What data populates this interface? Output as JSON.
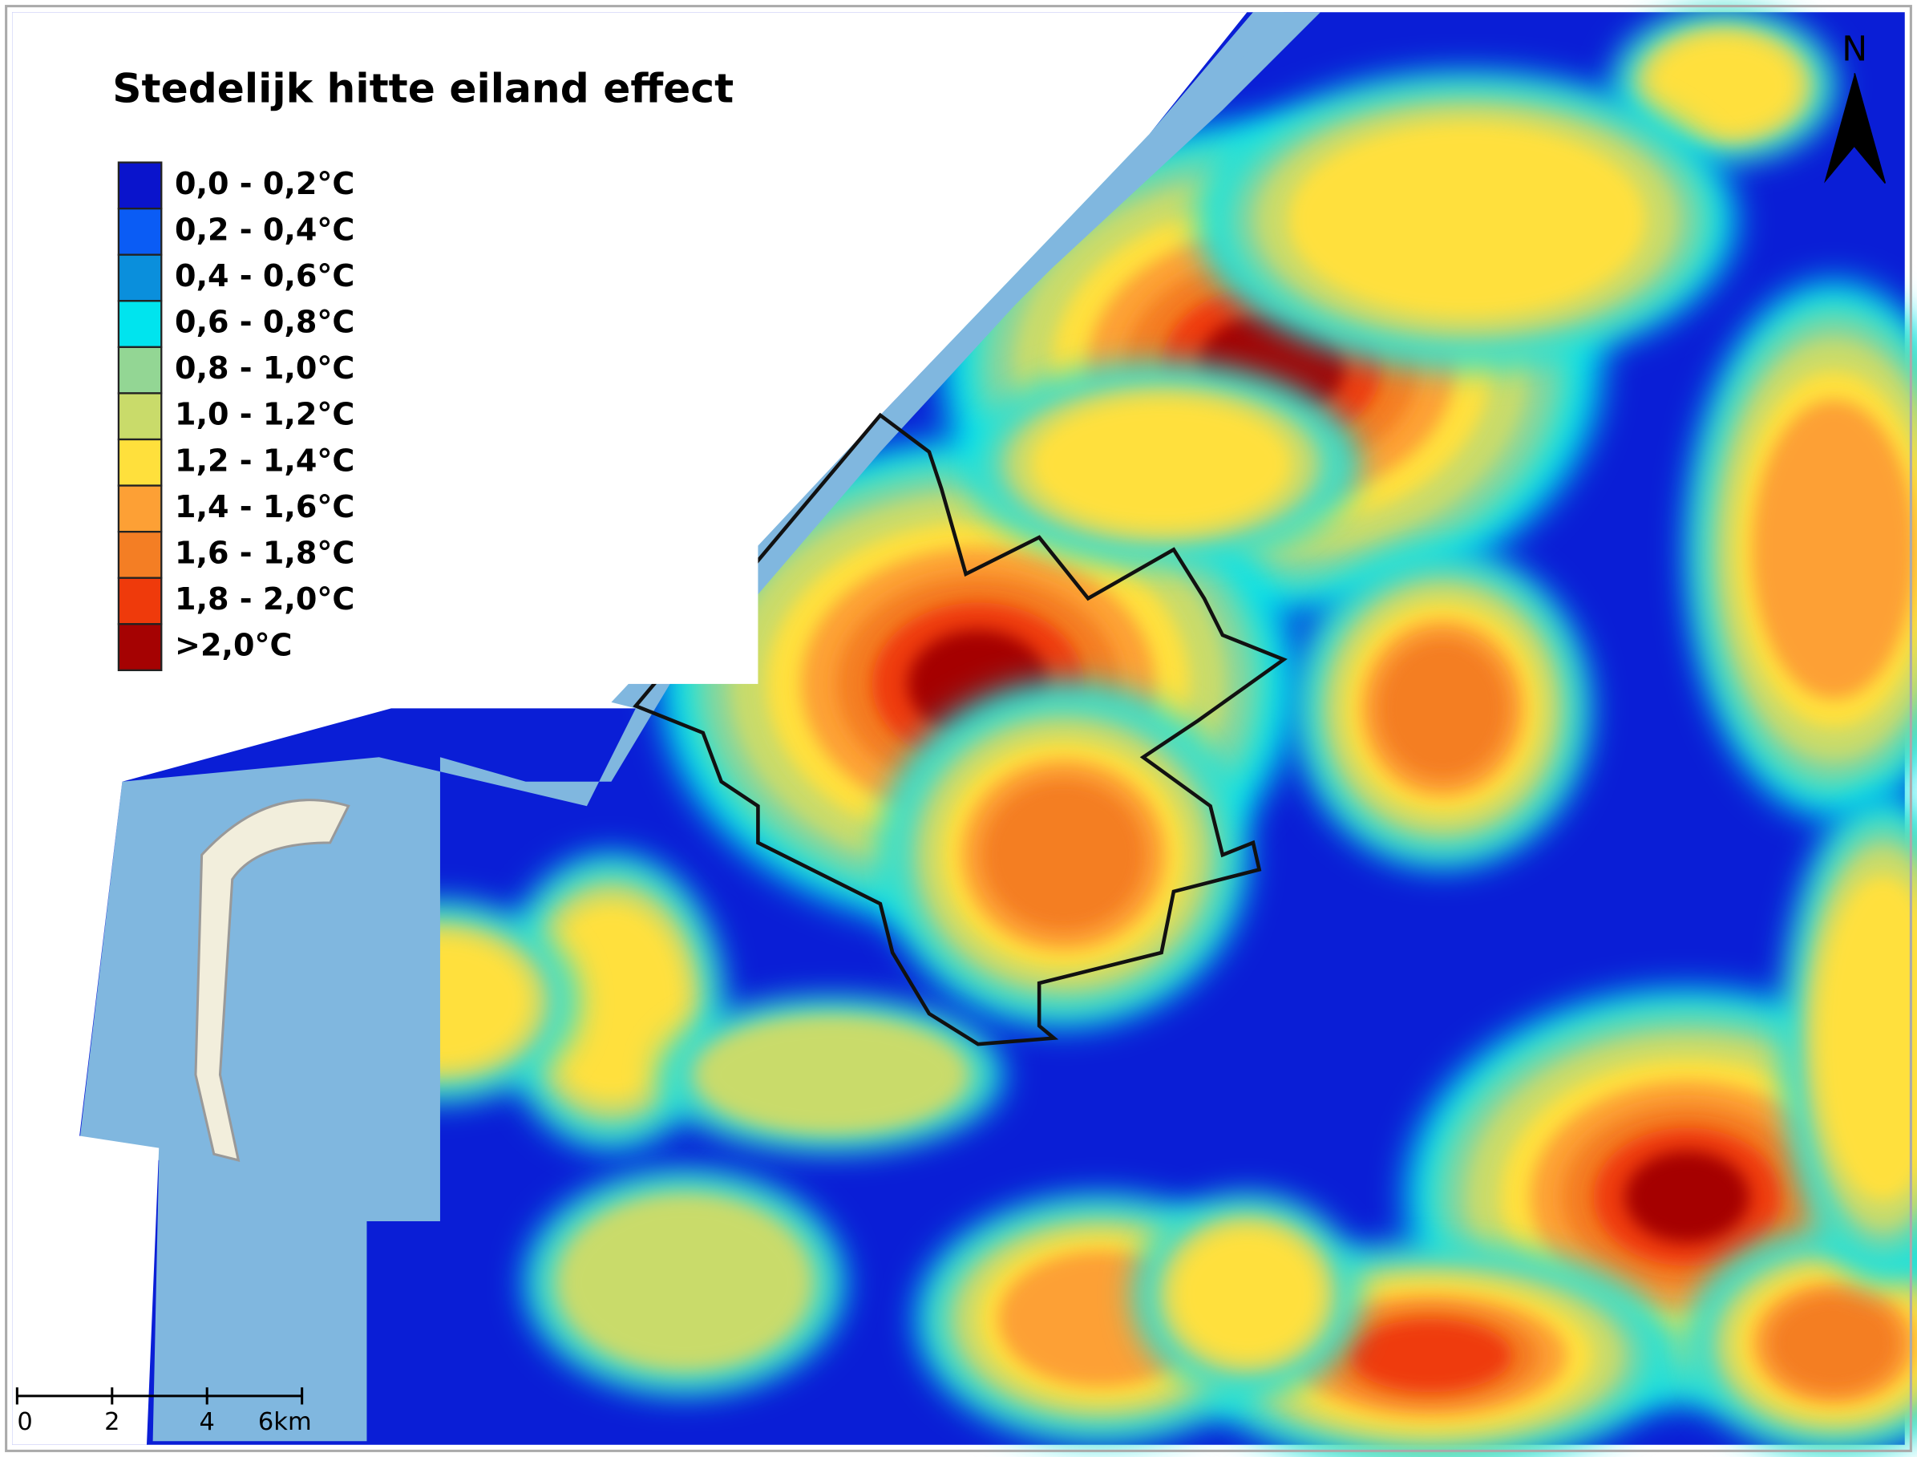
{
  "title": "Stedelijk hitte eiland effect",
  "legend": [
    {
      "label": "0,0 - 0,2°C",
      "color": "#0a14cc"
    },
    {
      "label": "0,2 - 0,4°C",
      "color": "#0a5cf5"
    },
    {
      "label": "0,4 - 0,6°C",
      "color": "#0a8fdc"
    },
    {
      "label": "0,6 - 0,8°C",
      "color": "#00e4ee"
    },
    {
      "label": "0,8 - 1,0°C",
      "color": "#93d694"
    },
    {
      "label": "1,0 - 1,2°C",
      "color": "#c9db6a"
    },
    {
      "label": "1,2 - 1,4°C",
      "color": "#ffe03c"
    },
    {
      "label": "1,4 - 1,6°C",
      "color": "#fda035"
    },
    {
      "label": "1,6 - 1,8°C",
      "color": "#f47e24"
    },
    {
      "label": "1,8 - 2,0°C",
      "color": "#ef3a0b"
    },
    {
      "label": ">2,0°C",
      "color": "#a50202"
    }
  ],
  "north": "N",
  "scale_bar": {
    "labels": [
      "0",
      "2",
      "4",
      "6km"
    ]
  }
}
